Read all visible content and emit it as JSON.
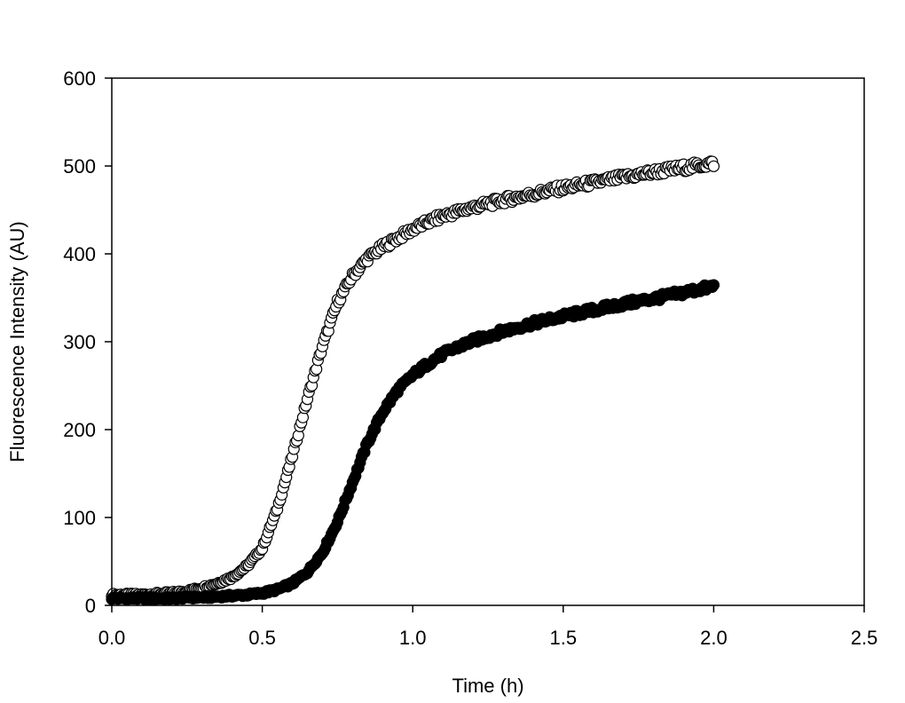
{
  "chart_data": {
    "type": "scatter",
    "title": "",
    "xlabel": "Time (h)",
    "ylabel": "Fluorescence Intensity (AU)",
    "xlim": [
      0,
      2.5
    ],
    "ylim": [
      0,
      600
    ],
    "xticks": [
      0,
      0.5,
      1,
      1.5,
      2,
      2.5
    ],
    "xtick_labels": [
      "0.0",
      "0.5",
      "1.0",
      "1.5",
      "2.0",
      "2.5"
    ],
    "yticks": [
      0,
      100,
      200,
      300,
      400,
      500,
      600
    ],
    "ytick_labels": [
      "0",
      "100",
      "200",
      "300",
      "400",
      "500",
      "600"
    ],
    "grid": false,
    "legend": "none",
    "series": [
      {
        "marker": "open-circle",
        "color": "#000000",
        "x": [
          0.0,
          0.05,
          0.1,
          0.15,
          0.2,
          0.25,
          0.3,
          0.35,
          0.4,
          0.45,
          0.5,
          0.55,
          0.6,
          0.65,
          0.7,
          0.75,
          0.8,
          0.85,
          0.9,
          0.95,
          1.0,
          1.05,
          1.1,
          1.15,
          1.2,
          1.3,
          1.4,
          1.5,
          1.6,
          1.7,
          1.8,
          1.9,
          2.0
        ],
        "y": [
          12,
          12,
          12,
          13,
          14,
          16,
          20,
          25,
          32,
          45,
          65,
          110,
          170,
          235,
          295,
          345,
          375,
          395,
          408,
          418,
          428,
          436,
          443,
          448,
          453,
          461,
          468,
          475,
          481,
          487,
          493,
          498,
          503
        ]
      },
      {
        "marker": "filled-circle",
        "color": "#000000",
        "x": [
          0.0,
          0.05,
          0.1,
          0.15,
          0.2,
          0.25,
          0.3,
          0.35,
          0.4,
          0.45,
          0.5,
          0.55,
          0.6,
          0.65,
          0.7,
          0.75,
          0.8,
          0.85,
          0.9,
          0.95,
          1.0,
          1.05,
          1.1,
          1.15,
          1.2,
          1.3,
          1.4,
          1.5,
          1.6,
          1.7,
          1.8,
          1.9,
          2.0
        ],
        "y": [
          8,
          8,
          8,
          8,
          8,
          9,
          9,
          10,
          11,
          12,
          14,
          18,
          25,
          38,
          60,
          95,
          140,
          185,
          220,
          245,
          262,
          275,
          286,
          294,
          301,
          312,
          321,
          329,
          336,
          343,
          349,
          356,
          363
        ]
      }
    ]
  }
}
